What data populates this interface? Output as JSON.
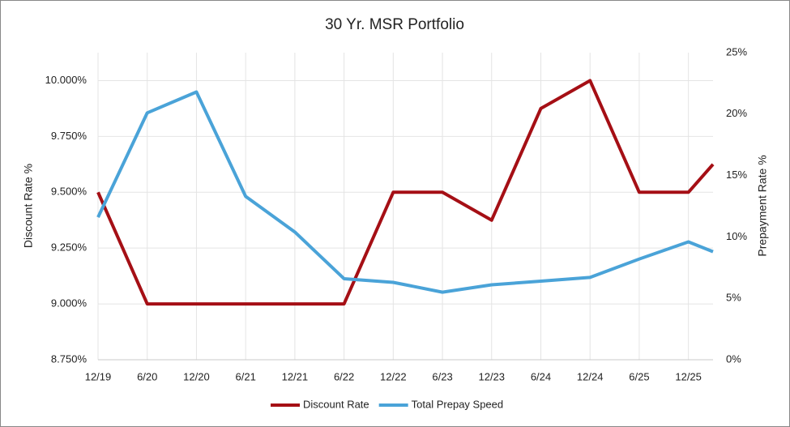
{
  "chart_data": {
    "type": "line",
    "title": "30 Yr. MSR Portfolio",
    "y_label": "Discount Rate %",
    "y2_label": "Prepayment Rate %",
    "x": [
      0,
      6,
      12,
      18,
      24,
      30,
      36,
      42,
      48,
      54,
      60,
      66,
      72,
      75
    ],
    "xlim": [
      0,
      75
    ],
    "xticks": [
      {
        "value": 0,
        "label": "12/19"
      },
      {
        "value": 6,
        "label": "6/20"
      },
      {
        "value": 12,
        "label": "12/20"
      },
      {
        "value": 18,
        "label": "6/21"
      },
      {
        "value": 24,
        "label": "12/21"
      },
      {
        "value": 30,
        "label": "6/22"
      },
      {
        "value": 36,
        "label": "12/22"
      },
      {
        "value": 42,
        "label": "6/23"
      },
      {
        "value": 48,
        "label": "12/23"
      },
      {
        "value": 54,
        "label": "6/24"
      },
      {
        "value": 60,
        "label": "12/24"
      },
      {
        "value": 66,
        "label": "6/25"
      },
      {
        "value": 72,
        "label": "12/25"
      }
    ],
    "ylim": [
      8.75,
      10.125
    ],
    "yticks": [
      {
        "value": 8.75,
        "label": "8.750%"
      },
      {
        "value": 9.0,
        "label": "9.000%"
      },
      {
        "value": 9.25,
        "label": "9.250%"
      },
      {
        "value": 9.5,
        "label": "9.500%"
      },
      {
        "value": 9.75,
        "label": "9.750%"
      },
      {
        "value": 10.0,
        "label": "10.000%"
      }
    ],
    "y2lim": [
      0,
      25
    ],
    "y2ticks": [
      {
        "value": 0,
        "label": "0%"
      },
      {
        "value": 5,
        "label": "5%"
      },
      {
        "value": 10,
        "label": "10%"
      },
      {
        "value": 15,
        "label": "15%"
      },
      {
        "value": 20,
        "label": "20%"
      },
      {
        "value": 25,
        "label": "25%"
      }
    ],
    "grid": true,
    "series": [
      {
        "name": "Discount Rate",
        "color": "#a50f15",
        "values": [
          9.5,
          9.0,
          9.0,
          9.0,
          9.0,
          9.0,
          9.5,
          9.5,
          9.375,
          9.875,
          10.0,
          9.5,
          9.5,
          9.625
        ]
      },
      {
        "name": "Total Prepay Speed",
        "color": "#4aa3d8",
        "axis": "y2",
        "values": [
          11.6,
          20.1,
          21.8,
          13.3,
          10.4,
          6.6,
          6.3,
          5.5,
          6.1,
          6.4,
          6.7,
          8.2,
          9.6,
          8.8
        ]
      }
    ]
  }
}
